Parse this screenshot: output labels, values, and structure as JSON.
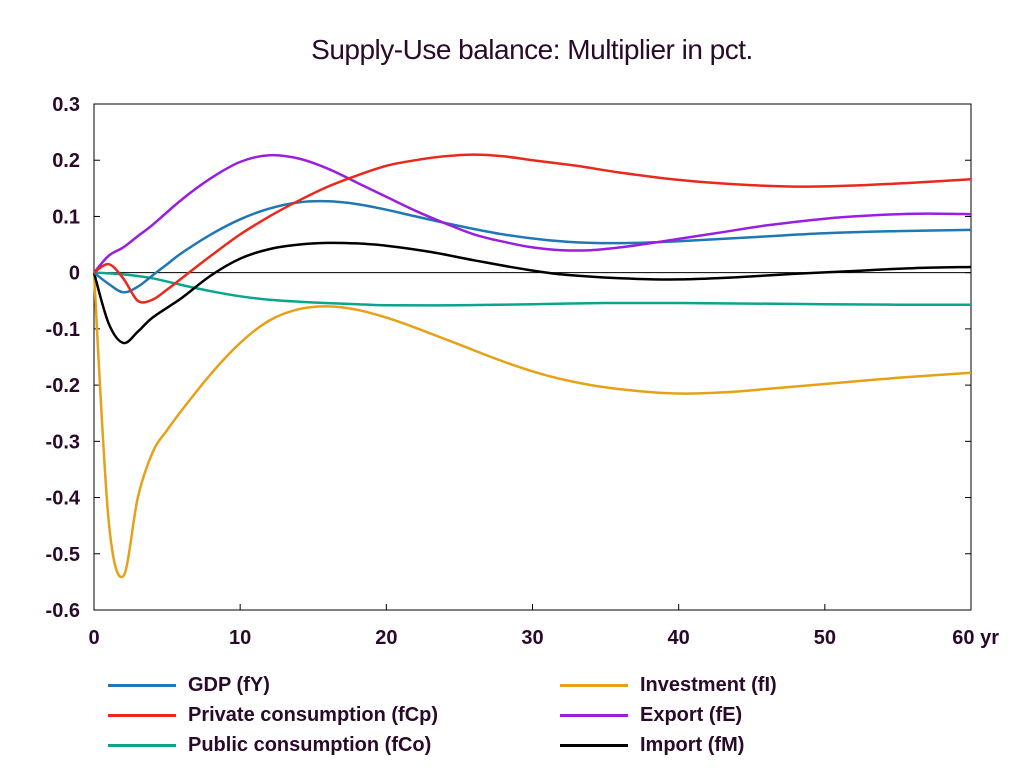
{
  "chart_data": {
    "type": "line",
    "title": "Supply-Use balance: Multiplier in pct.",
    "xlabel": "",
    "ylabel": "",
    "x_tick_labels": [
      "0",
      "10",
      "20",
      "30",
      "40",
      "50",
      "60 yr"
    ],
    "y_tick_labels": [
      "0.3",
      "0.2",
      "0.1",
      "0",
      "-0.1",
      "-0.2",
      "-0.3",
      "-0.4",
      "-0.5",
      "-0.6"
    ],
    "xlim": [
      0,
      60
    ],
    "ylim": [
      -0.6,
      0.3
    ],
    "x_ticks": [
      0,
      10,
      20,
      30,
      40,
      50,
      60
    ],
    "y_ticks": [
      0.3,
      0.2,
      0.1,
      0,
      -0.1,
      -0.2,
      -0.3,
      -0.4,
      -0.5,
      -0.6
    ],
    "legend_position": "bottom",
    "grid": false,
    "series": [
      {
        "name": "GDP (fY)",
        "color": "#1f77b4",
        "points": [
          [
            0,
            0
          ],
          [
            1,
            -0.02
          ],
          [
            2,
            -0.035
          ],
          [
            3,
            -0.025
          ],
          [
            4,
            -0.005
          ],
          [
            5,
            0.015
          ],
          [
            6,
            0.035
          ],
          [
            8,
            0.068
          ],
          [
            10,
            0.095
          ],
          [
            12,
            0.114
          ],
          [
            14,
            0.125
          ],
          [
            16,
            0.127
          ],
          [
            18,
            0.122
          ],
          [
            20,
            0.112
          ],
          [
            22,
            0.1
          ],
          [
            25,
            0.083
          ],
          [
            28,
            0.068
          ],
          [
            31,
            0.058
          ],
          [
            34,
            0.053
          ],
          [
            37,
            0.053
          ],
          [
            40,
            0.056
          ],
          [
            45,
            0.063
          ],
          [
            50,
            0.07
          ],
          [
            55,
            0.074
          ],
          [
            60,
            0.076
          ]
        ]
      },
      {
        "name": "Private consumption (fCp)",
        "color": "#e8291c",
        "points": [
          [
            0,
            0
          ],
          [
            1,
            0.015
          ],
          [
            2,
            -0.01
          ],
          [
            3,
            -0.05
          ],
          [
            4,
            -0.048
          ],
          [
            5,
            -0.03
          ],
          [
            6,
            -0.01
          ],
          [
            8,
            0.03
          ],
          [
            10,
            0.068
          ],
          [
            12,
            0.1
          ],
          [
            14,
            0.128
          ],
          [
            16,
            0.153
          ],
          [
            18,
            0.173
          ],
          [
            20,
            0.19
          ],
          [
            22,
            0.2
          ],
          [
            24,
            0.207
          ],
          [
            26,
            0.21
          ],
          [
            28,
            0.207
          ],
          [
            30,
            0.2
          ],
          [
            33,
            0.19
          ],
          [
            36,
            0.178
          ],
          [
            40,
            0.165
          ],
          [
            44,
            0.157
          ],
          [
            48,
            0.153
          ],
          [
            52,
            0.155
          ],
          [
            56,
            0.16
          ],
          [
            60,
            0.166
          ]
        ]
      },
      {
        "name": "Public consumption (fCo)",
        "color": "#0aa58a",
        "points": [
          [
            0,
            0
          ],
          [
            2,
            -0.003
          ],
          [
            4,
            -0.01
          ],
          [
            6,
            -0.022
          ],
          [
            8,
            -0.033
          ],
          [
            10,
            -0.042
          ],
          [
            12,
            -0.048
          ],
          [
            15,
            -0.053
          ],
          [
            18,
            -0.056
          ],
          [
            20,
            -0.058
          ],
          [
            25,
            -0.058
          ],
          [
            30,
            -0.056
          ],
          [
            35,
            -0.054
          ],
          [
            40,
            -0.054
          ],
          [
            45,
            -0.055
          ],
          [
            50,
            -0.056
          ],
          [
            55,
            -0.057
          ],
          [
            60,
            -0.057
          ]
        ]
      },
      {
        "name": "Investment (fI)",
        "color": "#e6a118",
        "points": [
          [
            0,
            0
          ],
          [
            1,
            -0.44
          ],
          [
            2,
            -0.54
          ],
          [
            3,
            -0.4
          ],
          [
            4,
            -0.32
          ],
          [
            5,
            -0.28
          ],
          [
            6,
            -0.245
          ],
          [
            8,
            -0.18
          ],
          [
            10,
            -0.125
          ],
          [
            12,
            -0.085
          ],
          [
            14,
            -0.065
          ],
          [
            16,
            -0.06
          ],
          [
            18,
            -0.066
          ],
          [
            20,
            -0.08
          ],
          [
            22,
            -0.098
          ],
          [
            25,
            -0.128
          ],
          [
            28,
            -0.158
          ],
          [
            31,
            -0.183
          ],
          [
            34,
            -0.2
          ],
          [
            37,
            -0.21
          ],
          [
            40,
            -0.215
          ],
          [
            43,
            -0.213
          ],
          [
            46,
            -0.207
          ],
          [
            50,
            -0.198
          ],
          [
            55,
            -0.187
          ],
          [
            60,
            -0.178
          ]
        ]
      },
      {
        "name": "Export (fE)",
        "color": "#9a1ee0",
        "points": [
          [
            0,
            0
          ],
          [
            1,
            0.03
          ],
          [
            2,
            0.045
          ],
          [
            3,
            0.065
          ],
          [
            4,
            0.085
          ],
          [
            6,
            0.13
          ],
          [
            8,
            0.168
          ],
          [
            10,
            0.197
          ],
          [
            12,
            0.209
          ],
          [
            14,
            0.203
          ],
          [
            16,
            0.185
          ],
          [
            18,
            0.16
          ],
          [
            20,
            0.135
          ],
          [
            22,
            0.11
          ],
          [
            24,
            0.088
          ],
          [
            26,
            0.068
          ],
          [
            28,
            0.055
          ],
          [
            30,
            0.045
          ],
          [
            32,
            0.04
          ],
          [
            34,
            0.04
          ],
          [
            36,
            0.045
          ],
          [
            38,
            0.052
          ],
          [
            40,
            0.06
          ],
          [
            43,
            0.072
          ],
          [
            46,
            0.084
          ],
          [
            50,
            0.096
          ],
          [
            54,
            0.103
          ],
          [
            57,
            0.105
          ],
          [
            60,
            0.104
          ]
        ]
      },
      {
        "name": "Import (fM)",
        "color": "#000000",
        "points": [
          [
            0,
            0
          ],
          [
            1,
            -0.09
          ],
          [
            2,
            -0.125
          ],
          [
            3,
            -0.105
          ],
          [
            4,
            -0.08
          ],
          [
            6,
            -0.045
          ],
          [
            8,
            -0.005
          ],
          [
            10,
            0.025
          ],
          [
            12,
            0.042
          ],
          [
            14,
            0.05
          ],
          [
            16,
            0.053
          ],
          [
            18,
            0.052
          ],
          [
            20,
            0.048
          ],
          [
            23,
            0.037
          ],
          [
            26,
            0.022
          ],
          [
            29,
            0.008
          ],
          [
            32,
            -0.003
          ],
          [
            36,
            -0.01
          ],
          [
            40,
            -0.012
          ],
          [
            44,
            -0.008
          ],
          [
            48,
            -0.002
          ],
          [
            52,
            0.003
          ],
          [
            56,
            0.008
          ],
          [
            60,
            0.01
          ]
        ]
      }
    ]
  }
}
